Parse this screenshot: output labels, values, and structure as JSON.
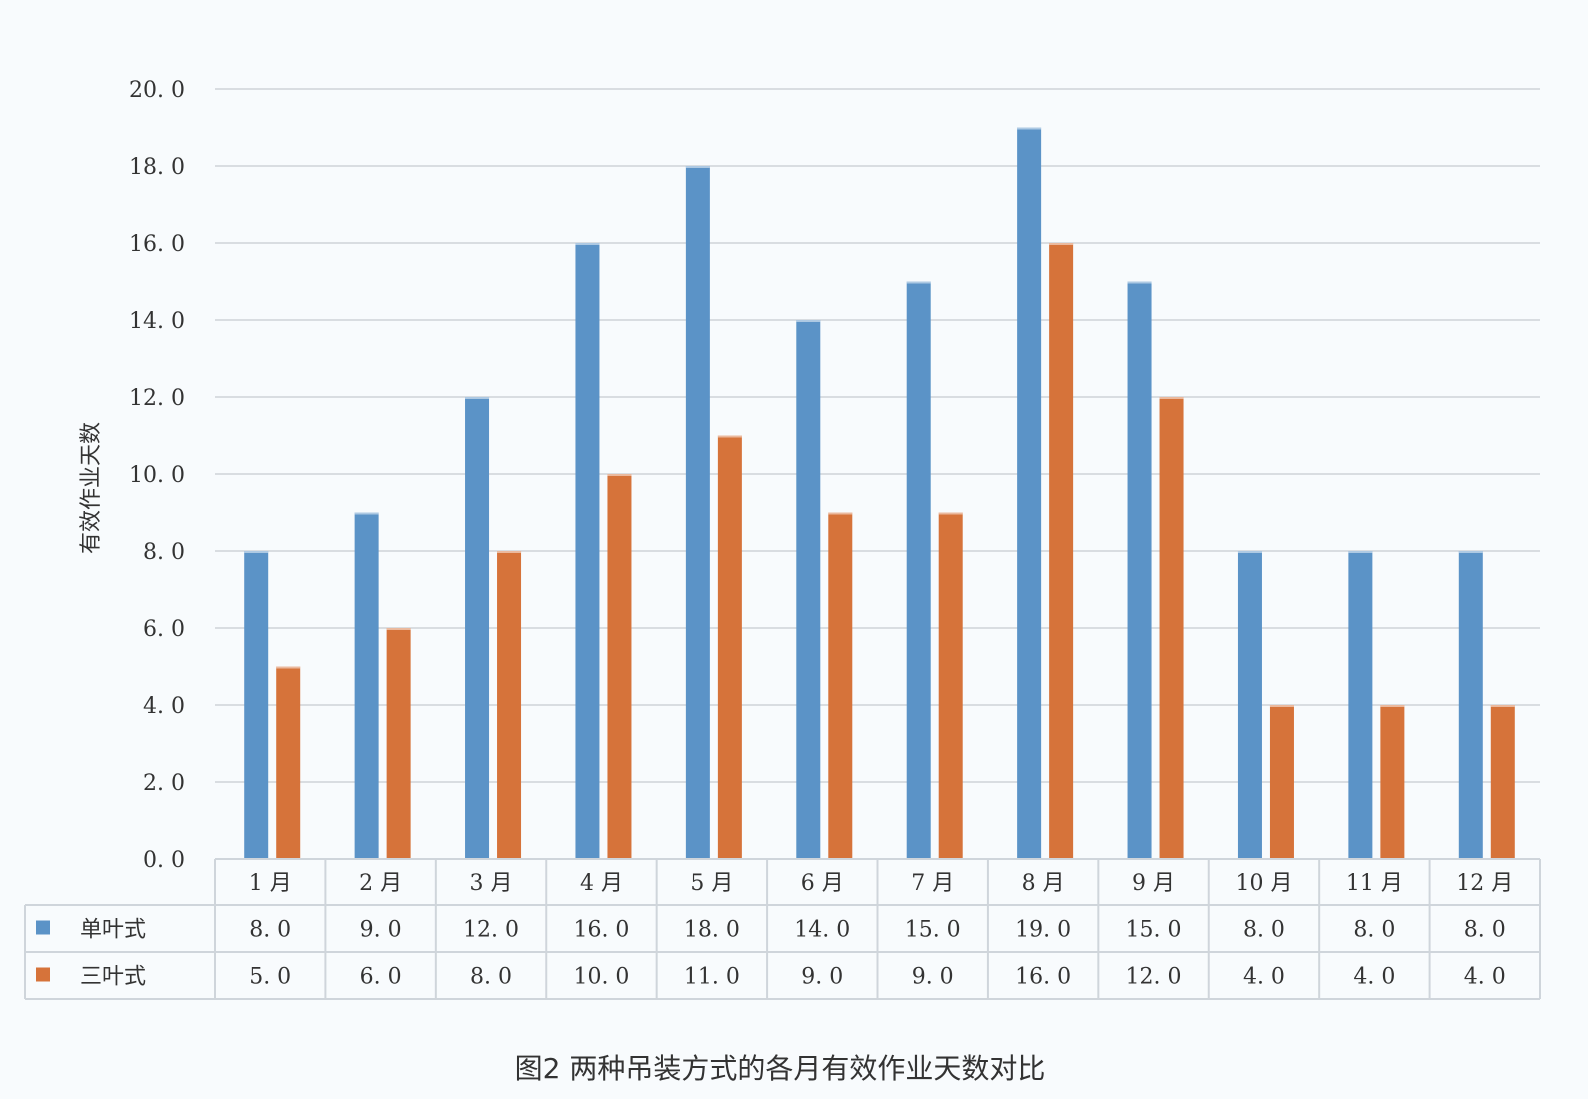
{
  "chart_data": {
    "type": "bar",
    "title": "",
    "caption": "图2 两种吊装方式的各月有效作业天数对比",
    "ylabel": "有效作业天数",
    "xlabel": "",
    "ylim": [
      0,
      20
    ],
    "yticks": [
      "0.0",
      "2.0",
      "4.0",
      "6.0",
      "8.0",
      "10.0",
      "12.0",
      "14.0",
      "16.0",
      "18.0",
      "20.0"
    ],
    "grid": true,
    "legend": "data-table",
    "categories": [
      "1月",
      "2月",
      "3月",
      "4月",
      "5月",
      "6月",
      "7月",
      "8月",
      "9月",
      "10月",
      "11月",
      "12月"
    ],
    "series": [
      {
        "name": "单叶式",
        "color": "#5b93c7",
        "values": [
          8.0,
          9.0,
          12.0,
          16.0,
          18.0,
          14.0,
          15.0,
          19.0,
          15.0,
          8.0,
          8.0,
          8.0
        ],
        "labels": [
          "8.0",
          "9.0",
          "12.0",
          "16.0",
          "18.0",
          "14.0",
          "15.0",
          "19.0",
          "15.0",
          "8.0",
          "8.0",
          "8.0"
        ]
      },
      {
        "name": "三叶式",
        "color": "#d6733a",
        "values": [
          5.0,
          6.0,
          8.0,
          10.0,
          11.0,
          9.0,
          9.0,
          16.0,
          12.0,
          4.0,
          4.0,
          4.0
        ],
        "labels": [
          "5.0",
          "6.0",
          "8.0",
          "10.0",
          "11.0",
          "9.0",
          "9.0",
          "16.0",
          "12.0",
          "4.0",
          "4.0",
          "4.0"
        ]
      }
    ]
  }
}
